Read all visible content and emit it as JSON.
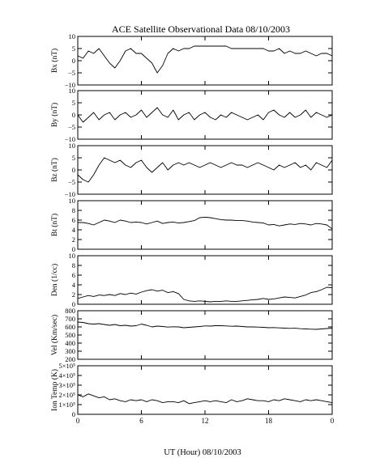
{
  "title": "ACE Satellite Observational Data   08/10/2003",
  "xlabel": "UT (Hour)   08/10/2003",
  "chart_data": [
    {
      "type": "line",
      "ylabel": "Bx (nT)",
      "ylim": [
        -10,
        10
      ],
      "yticks": [
        "10",
        "5",
        "0",
        "−5",
        "−10"
      ],
      "ytick_values": [
        10,
        5,
        0,
        -5,
        -10
      ],
      "xlim": [
        0,
        24
      ],
      "xticks": [
        "0",
        "6",
        "12",
        "18",
        "0"
      ],
      "xtick_values": [
        0,
        6,
        12,
        18,
        24
      ],
      "series": [
        {
          "x": [
            0,
            0.5,
            1,
            1.5,
            2,
            2.5,
            3,
            3.5,
            4,
            4.5,
            5,
            5.5,
            6,
            6.5,
            7,
            7.5,
            8,
            8.5,
            9,
            9.5,
            10,
            10.5,
            11,
            11.5,
            12,
            12.5,
            13,
            13.5,
            14,
            14.5,
            15,
            15.5,
            16,
            16.5,
            17,
            17.5,
            18,
            18.5,
            19,
            19.5,
            20,
            20.5,
            21,
            21.5,
            22,
            22.5,
            23,
            23.5,
            24
          ],
          "y": [
            2,
            1,
            4,
            3,
            5,
            2,
            -1,
            -3,
            0,
            4,
            5,
            3,
            3,
            1,
            -1,
            -5,
            -2,
            3,
            5,
            4,
            5,
            5,
            6,
            6,
            6,
            6,
            6,
            6,
            6,
            5,
            5,
            5,
            5,
            5,
            5,
            5,
            4,
            4,
            5,
            3,
            4,
            3,
            3,
            4,
            3,
            2,
            3,
            3,
            2
          ]
        }
      ]
    },
    {
      "type": "line",
      "ylabel": "By (nT)",
      "ylim": [
        -10,
        10
      ],
      "yticks": [
        "10",
        "5",
        "0",
        "−5",
        "−10"
      ],
      "ytick_values": [
        10,
        5,
        0,
        -5,
        -10
      ],
      "xlim": [
        0,
        24
      ],
      "xticks": [
        "0",
        "6",
        "12",
        "18",
        "0"
      ],
      "xtick_values": [
        0,
        6,
        12,
        18,
        24
      ],
      "series": [
        {
          "x": [
            0,
            0.5,
            1,
            1.5,
            2,
            2.5,
            3,
            3.5,
            4,
            4.5,
            5,
            5.5,
            6,
            6.5,
            7,
            7.5,
            8,
            8.5,
            9,
            9.5,
            10,
            10.5,
            11,
            11.5,
            12,
            12.5,
            13,
            13.5,
            14,
            14.5,
            15,
            15.5,
            16,
            16.5,
            17,
            17.5,
            18,
            18.5,
            19,
            19.5,
            20,
            20.5,
            21,
            21.5,
            22,
            22.5,
            23,
            23.5,
            24
          ],
          "y": [
            0,
            -3,
            -1,
            1,
            -2,
            0,
            1,
            -2,
            0,
            1,
            -1,
            0,
            2,
            -1,
            1,
            3,
            0,
            -1,
            2,
            -2,
            0,
            1,
            -2,
            0,
            1,
            -1,
            -2,
            0,
            -1,
            1,
            0,
            -1,
            -2,
            -1,
            0,
            -2,
            1,
            2,
            0,
            -1,
            1,
            -1,
            0,
            2,
            -1,
            1,
            0,
            -1,
            0
          ]
        }
      ]
    },
    {
      "type": "line",
      "ylabel": "Bz (nT)",
      "ylim": [
        -10,
        10
      ],
      "yticks": [
        "10",
        "5",
        "0",
        "−5",
        "−10"
      ],
      "ytick_values": [
        10,
        5,
        0,
        -5,
        -10
      ],
      "xlim": [
        0,
        24
      ],
      "xticks": [
        "0",
        "6",
        "12",
        "18",
        "0"
      ],
      "xtick_values": [
        0,
        6,
        12,
        18,
        24
      ],
      "series": [
        {
          "x": [
            0,
            0.5,
            1,
            1.5,
            2,
            2.5,
            3,
            3.5,
            4,
            4.5,
            5,
            5.5,
            6,
            6.5,
            7,
            7.5,
            8,
            8.5,
            9,
            9.5,
            10,
            10.5,
            11,
            11.5,
            12,
            12.5,
            13,
            13.5,
            14,
            14.5,
            15,
            15.5,
            16,
            16.5,
            17,
            17.5,
            18,
            18.5,
            19,
            19.5,
            20,
            20.5,
            21,
            21.5,
            22,
            22.5,
            23,
            23.5,
            24
          ],
          "y": [
            -2,
            -4,
            -5,
            -2,
            2,
            5,
            4,
            3,
            4,
            2,
            1,
            3,
            4,
            1,
            -1,
            1,
            3,
            0,
            2,
            3,
            2,
            3,
            2,
            1,
            2,
            3,
            2,
            1,
            2,
            3,
            2,
            2,
            1,
            2,
            3,
            2,
            1,
            0,
            2,
            1,
            2,
            3,
            1,
            2,
            0,
            3,
            2,
            1,
            4
          ]
        }
      ]
    },
    {
      "type": "line",
      "ylabel": "Bt (nT)",
      "ylim": [
        0,
        10
      ],
      "yticks": [
        "10",
        "8",
        "6",
        "4",
        "2",
        "0"
      ],
      "ytick_values": [
        10,
        8,
        6,
        4,
        2,
        0
      ],
      "xlim": [
        0,
        24
      ],
      "xticks": [
        "0",
        "6",
        "12",
        "18",
        "0"
      ],
      "xtick_values": [
        0,
        6,
        12,
        18,
        24
      ],
      "series": [
        {
          "x": [
            0,
            0.5,
            1,
            1.5,
            2,
            2.5,
            3,
            3.5,
            4,
            4.5,
            5,
            5.5,
            6,
            6.5,
            7,
            7.5,
            8,
            8.5,
            9,
            9.5,
            10,
            10.5,
            11,
            11.5,
            12,
            12.5,
            13,
            13.5,
            14,
            14.5,
            15,
            15.5,
            16,
            16.5,
            17,
            17.5,
            18,
            18.5,
            19,
            19.5,
            20,
            20.5,
            21,
            21.5,
            22,
            22.5,
            23,
            23.5,
            24
          ],
          "y": [
            5.5,
            5.5,
            5.3,
            5.0,
            5.5,
            6.0,
            5.8,
            5.5,
            6.0,
            5.8,
            5.5,
            5.6,
            5.5,
            5.2,
            5.5,
            5.8,
            5.3,
            5.5,
            5.6,
            5.4,
            5.5,
            5.7,
            5.9,
            6.5,
            6.6,
            6.5,
            6.3,
            6.1,
            6.0,
            6.0,
            5.9,
            5.9,
            5.8,
            5.6,
            5.5,
            5.4,
            5.0,
            5.1,
            4.8,
            5.0,
            5.2,
            5.1,
            5.3,
            5.2,
            5.0,
            5.3,
            5.2,
            5.0,
            4.2
          ]
        }
      ]
    },
    {
      "type": "line",
      "ylabel": "Den (1/cc)",
      "ylim": [
        0,
        10
      ],
      "yticks": [
        "10",
        "8",
        "6",
        "4",
        "2",
        "0"
      ],
      "ytick_values": [
        10,
        8,
        6,
        4,
        2,
        0
      ],
      "xlim": [
        0,
        24
      ],
      "xticks": [
        "0",
        "6",
        "12",
        "18",
        "0"
      ],
      "xtick_values": [
        0,
        6,
        12,
        18,
        24
      ],
      "series": [
        {
          "x": [
            0,
            0.5,
            1,
            1.5,
            2,
            2.5,
            3,
            3.5,
            4,
            4.5,
            5,
            5.5,
            6,
            6.5,
            7,
            7.5,
            8,
            8.5,
            9,
            9.5,
            10,
            10.5,
            11,
            11.5,
            12,
            12.5,
            13,
            13.5,
            14,
            14.5,
            15,
            15.5,
            16,
            16.5,
            17,
            17.5,
            18,
            18.5,
            19,
            19.5,
            20,
            20.5,
            21,
            21.5,
            22,
            22.5,
            23,
            23.5,
            24
          ],
          "y": [
            1.2,
            1.5,
            1.8,
            1.6,
            1.9,
            1.8,
            2.0,
            1.8,
            2.2,
            2.0,
            2.3,
            2.1,
            2.5,
            2.8,
            3.0,
            2.7,
            2.9,
            2.4,
            2.6,
            2.2,
            1.0,
            0.7,
            0.6,
            0.7,
            0.6,
            0.5,
            0.6,
            0.6,
            0.7,
            0.6,
            0.6,
            0.7,
            0.8,
            0.9,
            1.0,
            1.2,
            1.0,
            1.1,
            1.3,
            1.5,
            1.4,
            1.3,
            1.6,
            1.9,
            2.4,
            2.6,
            3.0,
            3.5,
            3.4
          ]
        }
      ]
    },
    {
      "type": "line",
      "ylabel": "Vel (Km/sec)",
      "ylim": [
        200,
        800
      ],
      "yticks": [
        "800",
        "700",
        "600",
        "500",
        "400",
        "300",
        "200"
      ],
      "ytick_values": [
        800,
        700,
        600,
        500,
        400,
        300,
        200
      ],
      "xlim": [
        0,
        24
      ],
      "xticks": [
        "0",
        "6",
        "12",
        "18",
        "0"
      ],
      "xtick_values": [
        0,
        6,
        12,
        18,
        24
      ],
      "series": [
        {
          "x": [
            0,
            0.5,
            1,
            1.5,
            2,
            2.5,
            3,
            3.5,
            4,
            4.5,
            5,
            5.5,
            6,
            6.5,
            7,
            7.5,
            8,
            8.5,
            9,
            9.5,
            10,
            10.5,
            11,
            11.5,
            12,
            12.5,
            13,
            13.5,
            14,
            14.5,
            15,
            15.5,
            16,
            16.5,
            17,
            17.5,
            18,
            18.5,
            19,
            19.5,
            20,
            20.5,
            21,
            21.5,
            22,
            22.5,
            23,
            23.5,
            24
          ],
          "y": [
            660,
            655,
            640,
            635,
            640,
            630,
            620,
            630,
            615,
            620,
            610,
            615,
            635,
            620,
            600,
            610,
            605,
            598,
            602,
            600,
            590,
            595,
            600,
            605,
            612,
            610,
            615,
            615,
            612,
            608,
            610,
            605,
            600,
            600,
            598,
            595,
            590,
            592,
            588,
            585,
            582,
            584,
            578,
            575,
            572,
            570,
            575,
            580,
            585
          ]
        }
      ]
    },
    {
      "type": "line",
      "ylabel": "Ion Temp (K)",
      "ylim": [
        0,
        500000
      ],
      "yticks": [
        "5×10⁵",
        "4×10⁵",
        "3×10⁵",
        "2×10⁵",
        "1×10⁵",
        "0"
      ],
      "ytick_values": [
        500000,
        400000,
        300000,
        200000,
        100000,
        0
      ],
      "xlim": [
        0,
        24
      ],
      "xticks": [
        "0",
        "6",
        "12",
        "18",
        "0"
      ],
      "xtick_values": [
        0,
        6,
        12,
        18,
        24
      ],
      "series": [
        {
          "x": [
            0,
            0.5,
            1,
            1.5,
            2,
            2.5,
            3,
            3.5,
            4,
            4.5,
            5,
            5.5,
            6,
            6.5,
            7,
            7.5,
            8,
            8.5,
            9,
            9.5,
            10,
            10.5,
            11,
            11.5,
            12,
            12.5,
            13,
            13.5,
            14,
            14.5,
            15,
            15.5,
            16,
            16.5,
            17,
            17.5,
            18,
            18.5,
            19,
            19.5,
            20,
            20.5,
            21,
            21.5,
            22,
            22.5,
            23,
            23.5,
            24
          ],
          "y": [
            200000,
            180000,
            210000,
            190000,
            170000,
            180000,
            150000,
            160000,
            140000,
            130000,
            150000,
            140000,
            150000,
            130000,
            150000,
            140000,
            120000,
            130000,
            130000,
            120000,
            140000,
            110000,
            120000,
            130000,
            140000,
            130000,
            140000,
            130000,
            120000,
            150000,
            130000,
            140000,
            160000,
            150000,
            140000,
            140000,
            130000,
            150000,
            140000,
            160000,
            150000,
            140000,
            130000,
            150000,
            140000,
            150000,
            140000,
            130000,
            120000
          ]
        }
      ]
    }
  ]
}
